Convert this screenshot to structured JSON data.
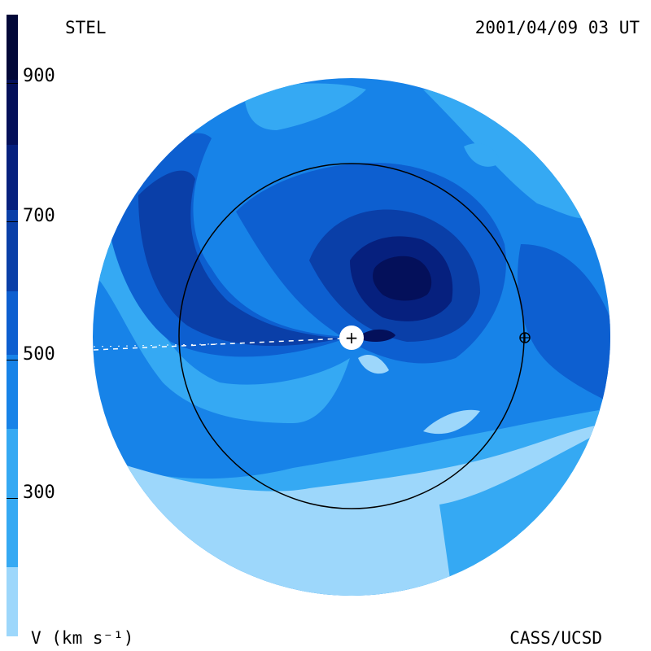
{
  "header": {
    "left_label": "STEL",
    "right_label": "2001/04/09 03 UT"
  },
  "footer": {
    "left_label": "V (km s⁻¹)",
    "right_label": "CASS/UCSD"
  },
  "colorbar": {
    "tick_labels": [
      "900",
      "700",
      "500",
      "300"
    ],
    "levels": [
      {
        "min": 200,
        "max": 300,
        "color": "#9dd7fb"
      },
      {
        "min": 300,
        "max": 400,
        "color": "#35a9f3"
      },
      {
        "min": 400,
        "max": 500,
        "color": "#1783e8"
      },
      {
        "min": 500,
        "max": 600,
        "color": "#0d5fd0"
      },
      {
        "min": 600,
        "max": 700,
        "color": "#0a3fa8"
      },
      {
        "min": 700,
        "max": 800,
        "color": "#06207e"
      },
      {
        "min": 800,
        "max": 900,
        "color": "#04105a"
      },
      {
        "min": 900,
        "max": 1000,
        "color": "#020838"
      }
    ]
  },
  "plot": {
    "sun_symbol": "+",
    "earth_symbol": "⊕"
  }
}
